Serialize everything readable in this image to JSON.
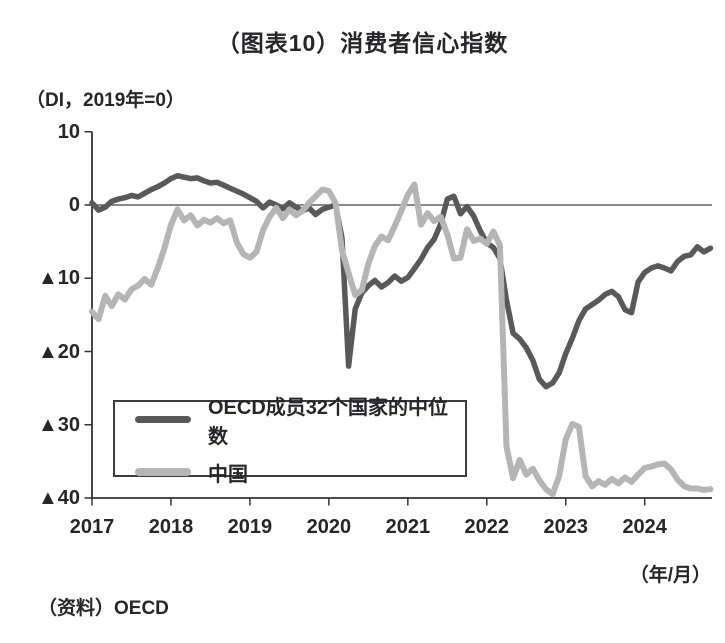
{
  "title": "（图表10）消费者信心指数",
  "unit_label": "（DI，2019年=0）",
  "x_axis_note": "（年/月）",
  "source": "（资料）OECD",
  "colors": {
    "oecd": "#595959",
    "china": "#b5b5b5",
    "axis": "#333333",
    "zero_line": "#404040",
    "text": "#26262a"
  },
  "legend": {
    "items": [
      {
        "key": "oecd",
        "label": "OECD成员32个国家的中位数"
      },
      {
        "key": "china",
        "label": "中国"
      }
    ]
  },
  "chart_data": {
    "type": "line",
    "title": "（图表10）消费者信心指数",
    "ylabel": "（DI，2019年=0）",
    "xlabel": "（年/月）",
    "x_unit": "month",
    "x_start": "2017-01",
    "x_end": "2024-11",
    "x_tick_labels": [
      "2017",
      "2018",
      "2019",
      "2020",
      "2021",
      "2022",
      "2023",
      "2024"
    ],
    "y_ticks": [
      10,
      0,
      -10,
      -20,
      -30,
      -40
    ],
    "y_tick_labels": [
      "10",
      "0",
      "▲10",
      "▲20",
      "▲30",
      "▲40"
    ],
    "ylim": [
      -40,
      10
    ],
    "grid": false,
    "zero_line": true,
    "legend_position": "lower-left-inside",
    "series": [
      {
        "name": "OECD成员32个国家的中位数",
        "color_key": "oecd",
        "values": [
          0.3,
          -0.7,
          -0.3,
          0.5,
          0.8,
          1.0,
          1.3,
          1.1,
          1.6,
          2.1,
          2.5,
          3.0,
          3.6,
          4.0,
          3.8,
          3.6,
          3.7,
          3.3,
          3.0,
          3.1,
          2.7,
          2.3,
          1.9,
          1.5,
          1.0,
          0.5,
          -0.4,
          0.4,
          0.0,
          -0.5,
          0.3,
          -0.3,
          -0.8,
          -0.4,
          -1.3,
          -0.6,
          -0.3,
          0.0,
          -4.5,
          -22.0,
          -14.2,
          -12.0,
          -11.0,
          -10.3,
          -11.2,
          -10.6,
          -9.7,
          -10.4,
          -9.9,
          -8.7,
          -7.4,
          -5.8,
          -4.7,
          -2.6,
          0.8,
          1.2,
          -1.2,
          -0.2,
          -1.5,
          -3.5,
          -5.2,
          -5.8,
          -7.3,
          -13.0,
          -17.5,
          -18.3,
          -19.5,
          -21.2,
          -23.8,
          -24.8,
          -24.3,
          -22.9,
          -20.3,
          -18.2,
          -15.8,
          -14.2,
          -13.6,
          -13.0,
          -12.2,
          -11.8,
          -12.5,
          -14.3,
          -14.7,
          -10.5,
          -9.2,
          -8.6,
          -8.3,
          -8.6,
          -9.0,
          -7.7,
          -7.0,
          -6.8,
          -5.7,
          -6.4,
          -5.9
        ]
      },
      {
        "name": "中国",
        "color_key": "china",
        "values": [
          -14.6,
          -15.6,
          -12.4,
          -13.8,
          -12.2,
          -12.9,
          -11.5,
          -11.0,
          -10.1,
          -10.9,
          -8.6,
          -5.9,
          -2.7,
          -0.6,
          -2.1,
          -1.4,
          -2.8,
          -2.0,
          -2.4,
          -1.8,
          -2.5,
          -2.1,
          -5.1,
          -6.7,
          -7.2,
          -6.4,
          -3.4,
          -1.6,
          -0.4,
          -1.8,
          -0.6,
          -1.4,
          -0.8,
          0.3,
          1.2,
          2.1,
          1.9,
          0.3,
          -6.2,
          -9.3,
          -12.3,
          -11.6,
          -8.0,
          -5.6,
          -4.3,
          -4.8,
          -2.9,
          -0.8,
          1.4,
          2.8,
          -2.7,
          -1.1,
          -2.2,
          -1.6,
          -4.0,
          -7.3,
          -7.2,
          -3.3,
          -4.9,
          -4.6,
          -5.3,
          -3.6,
          -5.5,
          -33.0,
          -37.3,
          -34.8,
          -36.8,
          -36.0,
          -37.6,
          -38.8,
          -39.5,
          -37.0,
          -32.0,
          -29.9,
          -30.3,
          -37.0,
          -38.4,
          -37.7,
          -38.2,
          -37.4,
          -38.0,
          -37.2,
          -37.8,
          -36.8,
          -35.9,
          -35.7,
          -35.4,
          -35.3,
          -36.1,
          -37.5,
          -38.4,
          -38.7,
          -38.7,
          -38.9,
          -38.8
        ]
      }
    ]
  }
}
